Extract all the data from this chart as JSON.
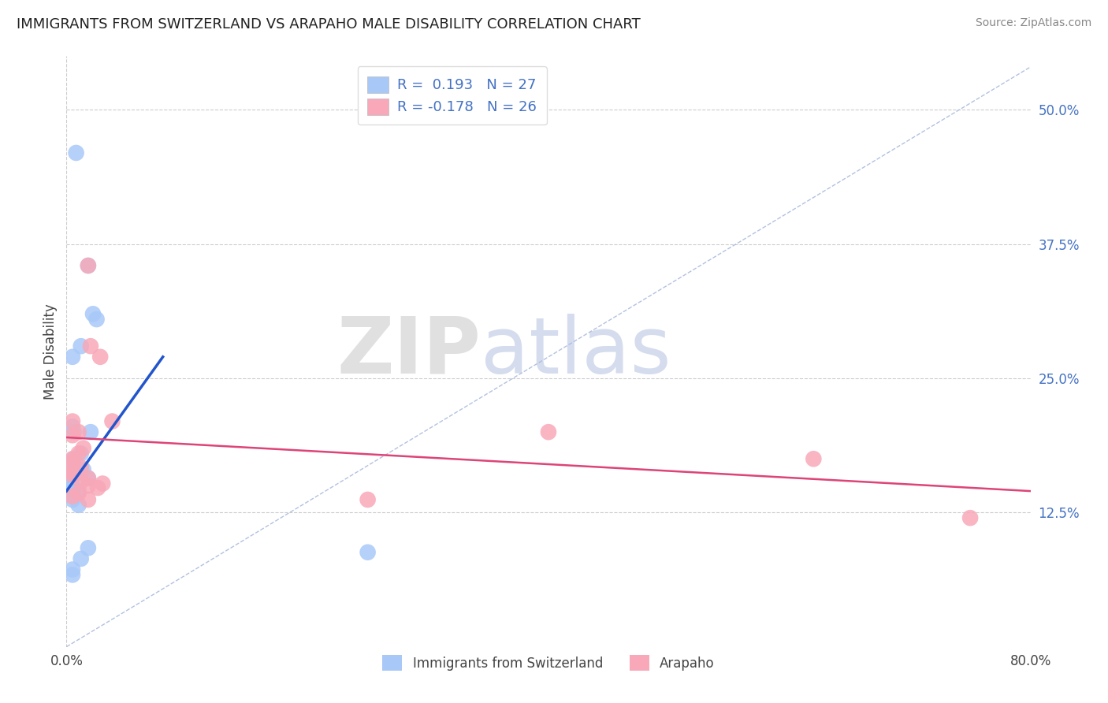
{
  "title": "IMMIGRANTS FROM SWITZERLAND VS ARAPAHO MALE DISABILITY CORRELATION CHART",
  "source": "Source: ZipAtlas.com",
  "ylabel": "Male Disability",
  "xlim": [
    0.0,
    0.8
  ],
  "ylim": [
    0.0,
    0.55
  ],
  "R_blue": 0.193,
  "N_blue": 27,
  "R_pink": -0.178,
  "N_pink": 26,
  "blue_color": "#a8c8f8",
  "pink_color": "#f8a8b8",
  "blue_line_color": "#2255cc",
  "pink_line_color": "#dd4477",
  "dashed_line_color": "#aabbdd",
  "watermark_zip": "ZIP",
  "watermark_atlas": "atlas",
  "blue_dots": [
    [
      0.008,
      0.46
    ],
    [
      0.018,
      0.355
    ],
    [
      0.022,
      0.31
    ],
    [
      0.012,
      0.28
    ],
    [
      0.005,
      0.27
    ],
    [
      0.025,
      0.305
    ],
    [
      0.005,
      0.205
    ],
    [
      0.006,
      0.2
    ],
    [
      0.02,
      0.2
    ],
    [
      0.012,
      0.18
    ],
    [
      0.006,
      0.175
    ],
    [
      0.005,
      0.168
    ],
    [
      0.014,
      0.165
    ],
    [
      0.006,
      0.162
    ],
    [
      0.005,
      0.157
    ],
    [
      0.018,
      0.157
    ],
    [
      0.005,
      0.15
    ],
    [
      0.005,
      0.147
    ],
    [
      0.01,
      0.145
    ],
    [
      0.005,
      0.142
    ],
    [
      0.005,
      0.137
    ],
    [
      0.01,
      0.132
    ],
    [
      0.018,
      0.092
    ],
    [
      0.012,
      0.082
    ],
    [
      0.005,
      0.072
    ],
    [
      0.005,
      0.067
    ],
    [
      0.25,
      0.088
    ]
  ],
  "pink_dots": [
    [
      0.018,
      0.355
    ],
    [
      0.02,
      0.28
    ],
    [
      0.028,
      0.27
    ],
    [
      0.01,
      0.2
    ],
    [
      0.005,
      0.197
    ],
    [
      0.005,
      0.21
    ],
    [
      0.014,
      0.185
    ],
    [
      0.01,
      0.18
    ],
    [
      0.005,
      0.175
    ],
    [
      0.005,
      0.172
    ],
    [
      0.012,
      0.167
    ],
    [
      0.005,
      0.163
    ],
    [
      0.005,
      0.16
    ],
    [
      0.018,
      0.157
    ],
    [
      0.012,
      0.154
    ],
    [
      0.03,
      0.152
    ],
    [
      0.018,
      0.15
    ],
    [
      0.026,
      0.148
    ],
    [
      0.01,
      0.143
    ],
    [
      0.005,
      0.14
    ],
    [
      0.018,
      0.137
    ],
    [
      0.038,
      0.21
    ],
    [
      0.25,
      0.137
    ],
    [
      0.4,
      0.2
    ],
    [
      0.62,
      0.175
    ],
    [
      0.75,
      0.12
    ]
  ],
  "blue_line_x": [
    0.0,
    0.08
  ],
  "blue_line_y": [
    0.145,
    0.27
  ],
  "pink_line_x": [
    0.0,
    0.8
  ],
  "pink_line_y": [
    0.195,
    0.145
  ]
}
